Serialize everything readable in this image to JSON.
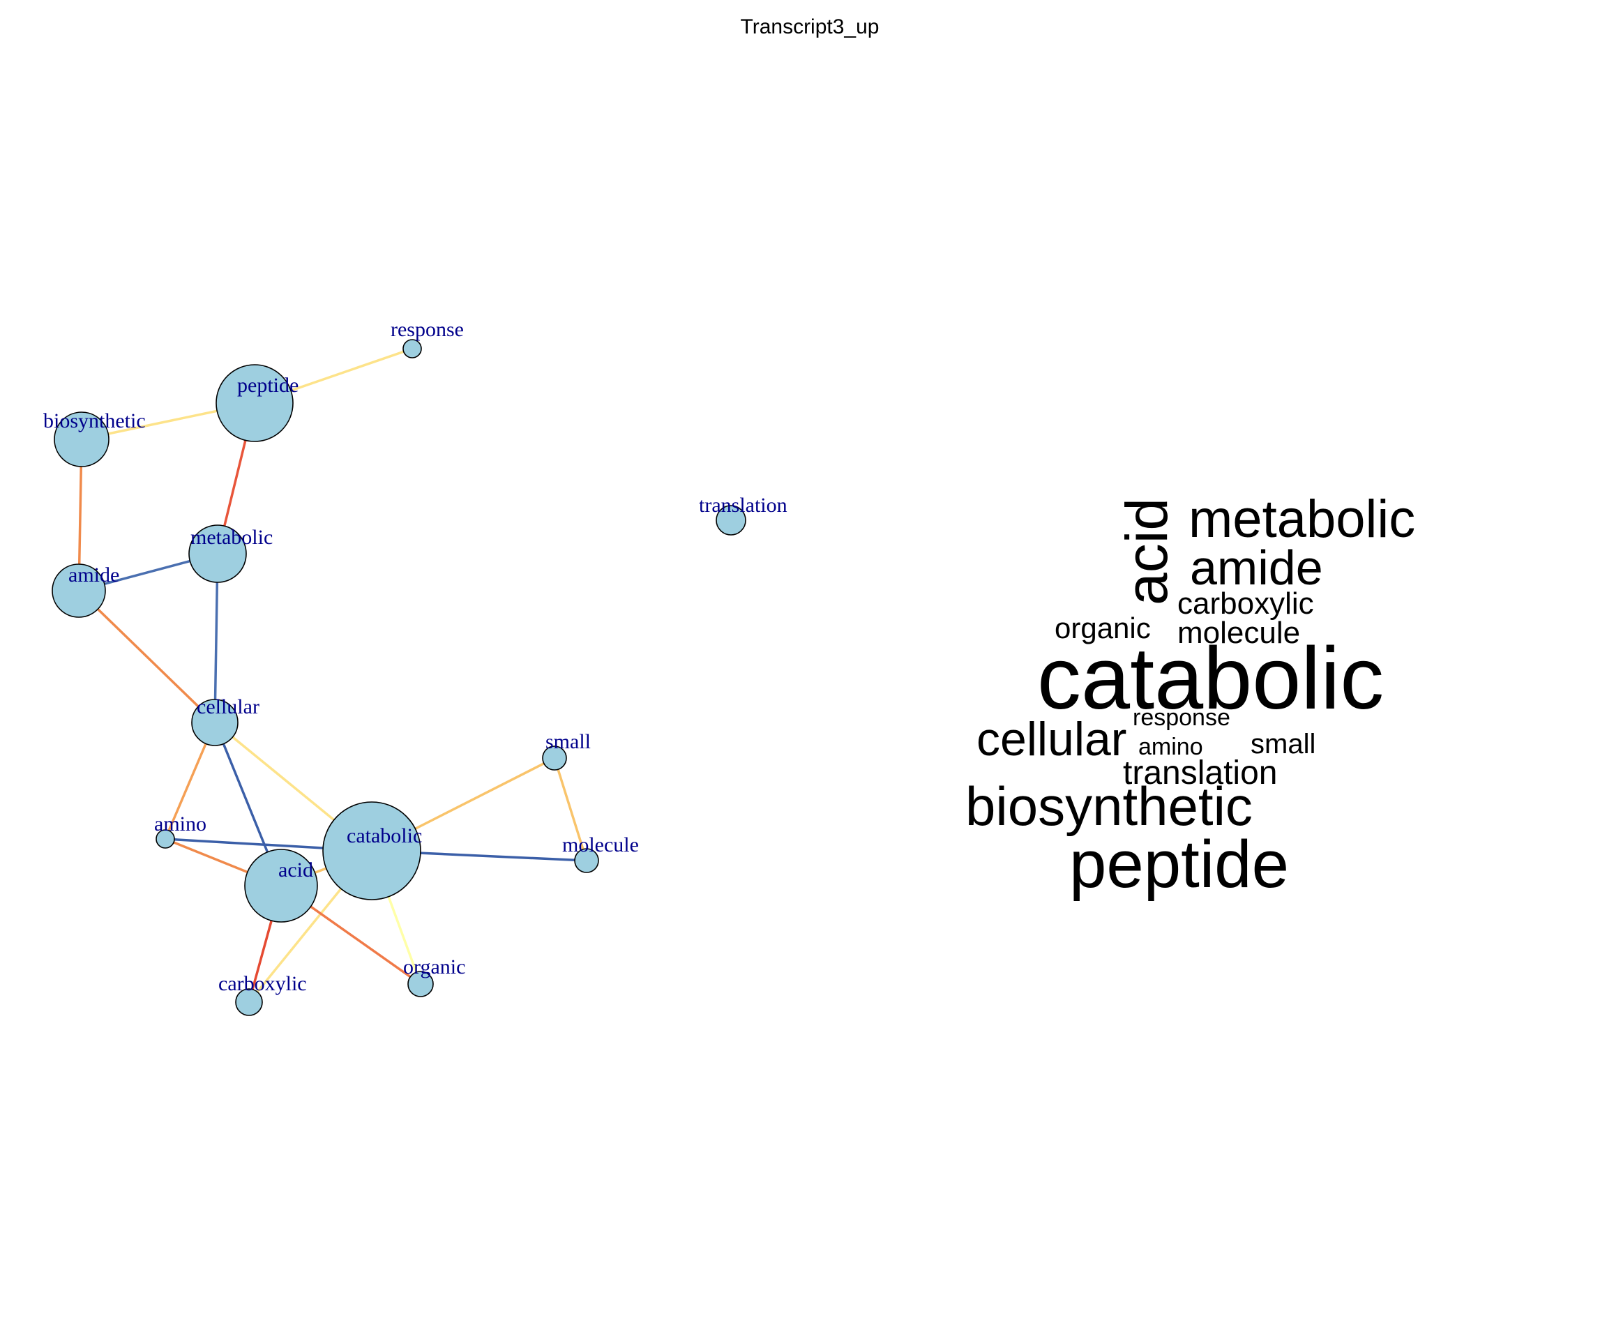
{
  "title": "Transcript3_up",
  "colors": {
    "node_fill": "#9ecfe0",
    "node_stroke": "#000000",
    "label": "#00008b",
    "background": "#ffffff"
  },
  "network": {
    "nodes": [
      {
        "id": "response",
        "label": "response"
      },
      {
        "id": "peptide",
        "label": "peptide"
      },
      {
        "id": "biosynthetic",
        "label": "biosynthetic"
      },
      {
        "id": "translation",
        "label": "translation"
      },
      {
        "id": "metabolic",
        "label": "metabolic"
      },
      {
        "id": "amide",
        "label": "amide"
      },
      {
        "id": "cellular",
        "label": "cellular"
      },
      {
        "id": "small",
        "label": "small"
      },
      {
        "id": "amino",
        "label": "amino"
      },
      {
        "id": "catabolic",
        "label": "catabolic"
      },
      {
        "id": "molecule",
        "label": "molecule"
      },
      {
        "id": "acid",
        "label": "acid"
      },
      {
        "id": "carboxylic",
        "label": "carboxylic"
      },
      {
        "id": "organic",
        "label": "organic"
      }
    ],
    "edges": [
      {
        "source": "response",
        "target": "peptide",
        "color": "#fde38a"
      },
      {
        "source": "peptide",
        "target": "biosynthetic",
        "color": "#fde38a"
      },
      {
        "source": "peptide",
        "target": "metabolic",
        "color": "#e8553a"
      },
      {
        "source": "biosynthetic",
        "target": "amide",
        "color": "#f08a4b"
      },
      {
        "source": "amide",
        "target": "metabolic",
        "color": "#4a6fb0"
      },
      {
        "source": "metabolic",
        "target": "cellular",
        "color": "#4a6fb0"
      },
      {
        "source": "amide",
        "target": "cellular",
        "color": "#f08a4b"
      },
      {
        "source": "cellular",
        "target": "catabolic",
        "color": "#fde38a"
      },
      {
        "source": "cellular",
        "target": "acid",
        "color": "#3b5fa8"
      },
      {
        "source": "cellular",
        "target": "amino",
        "color": "#f5a055"
      },
      {
        "source": "amino",
        "target": "catabolic",
        "color": "#3b5fa8"
      },
      {
        "source": "amino",
        "target": "acid",
        "color": "#f08a4b"
      },
      {
        "source": "catabolic",
        "target": "small",
        "color": "#f9c46b"
      },
      {
        "source": "small",
        "target": "molecule",
        "color": "#f9c46b"
      },
      {
        "source": "catabolic",
        "target": "molecule",
        "color": "#3b5fa8"
      },
      {
        "source": "catabolic",
        "target": "acid",
        "color": "#f9c46b"
      },
      {
        "source": "catabolic",
        "target": "organic",
        "color": "#ffffa8"
      },
      {
        "source": "catabolic",
        "target": "carboxylic",
        "color": "#fde38a"
      },
      {
        "source": "acid",
        "target": "organic",
        "color": "#f07a48"
      },
      {
        "source": "acid",
        "target": "carboxylic",
        "color": "#e54a32"
      }
    ]
  },
  "wordcloud": {
    "words": [
      {
        "text": "acid",
        "weight": 60,
        "rotated": true
      },
      {
        "text": "metabolic",
        "weight": 50
      },
      {
        "text": "amide",
        "weight": 47
      },
      {
        "text": "carboxylic",
        "weight": 30
      },
      {
        "text": "organic",
        "weight": 29
      },
      {
        "text": "molecule",
        "weight": 29
      },
      {
        "text": "catabolic",
        "weight": 80
      },
      {
        "text": "response",
        "weight": 24
      },
      {
        "text": "cellular",
        "weight": 48
      },
      {
        "text": "amino",
        "weight": 24
      },
      {
        "text": "small",
        "weight": 27
      },
      {
        "text": "translation",
        "weight": 33
      },
      {
        "text": "biosynthetic",
        "weight": 55
      },
      {
        "text": "peptide",
        "weight": 66
      }
    ]
  }
}
